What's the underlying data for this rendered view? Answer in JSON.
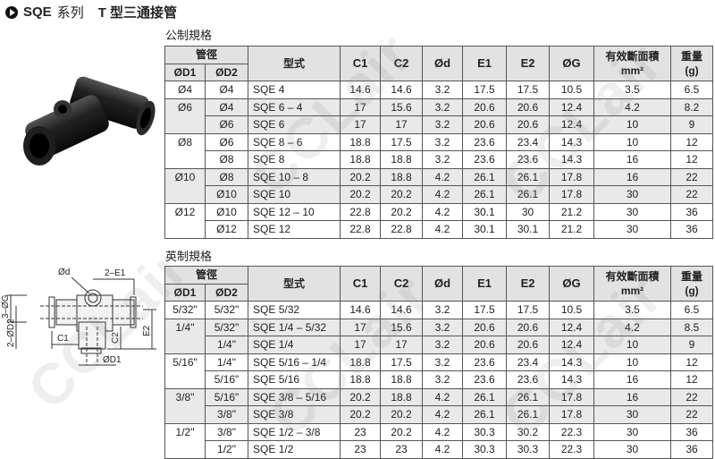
{
  "header": {
    "brand": "SQE",
    "series": "系列",
    "title": "T 型三通接管"
  },
  "watermark": "CCLair",
  "columns": {
    "tube": "管徑",
    "d1": "ØD1",
    "d2": "ØD2",
    "model": "型式",
    "c1": "C1",
    "c2": "C2",
    "d": "Ød",
    "e1": "E1",
    "e2": "E2",
    "g": "ØG",
    "area": "有效斷面積",
    "area_unit": "mm²",
    "weight": "重量",
    "weight_unit": "(g)"
  },
  "metric": {
    "label": "公制規格",
    "groups": [
      {
        "d1": "Ø4",
        "rows": [
          [
            "Ø4",
            "SQE   4",
            "14.6",
            "14.6",
            "3.2",
            "17.5",
            "17.5",
            "10.5",
            "3.5",
            "6.5"
          ]
        ]
      },
      {
        "d1": "Ø6",
        "rows": [
          [
            "Ø4",
            "SQE   6  –  4",
            "17",
            "15.6",
            "3.2",
            "20.6",
            "20.6",
            "12.4",
            "4.2",
            "8.2"
          ],
          [
            "Ø6",
            "SQE   6",
            "17",
            "17",
            "3.2",
            "20.6",
            "20.6",
            "12.4",
            "10",
            "9"
          ]
        ]
      },
      {
        "d1": "Ø8",
        "rows": [
          [
            "Ø6",
            "SQE   8  –  6",
            "18.8",
            "17.5",
            "3.2",
            "23.6",
            "23.4",
            "14.3",
            "10",
            "12"
          ],
          [
            "Ø8",
            "SQE   8",
            "18.8",
            "18.8",
            "3.2",
            "23.6",
            "23.6",
            "14.3",
            "16",
            "12"
          ]
        ]
      },
      {
        "d1": "Ø10",
        "rows": [
          [
            "Ø8",
            "SQE   10  –  8",
            "20.2",
            "18.8",
            "4.2",
            "26.1",
            "26.1",
            "17.8",
            "16",
            "22"
          ],
          [
            "Ø10",
            "SQE   10",
            "20.2",
            "20.2",
            "4.2",
            "26.1",
            "26.1",
            "17.8",
            "30",
            "22"
          ]
        ]
      },
      {
        "d1": "Ø12",
        "rows": [
          [
            "Ø10",
            "SQE   12  –  10",
            "22.8",
            "20.2",
            "4.2",
            "30.1",
            "30",
            "21.2",
            "30",
            "36"
          ],
          [
            "Ø12",
            "SQE   12",
            "22.8",
            "22.8",
            "4.2",
            "30.1",
            "30.1",
            "21.2",
            "30",
            "36"
          ]
        ]
      }
    ]
  },
  "imperial": {
    "label": "英制規格",
    "groups": [
      {
        "d1": "5/32\"",
        "rows": [
          [
            "5/32\"",
            "SQE  5/32",
            "14.6",
            "14.6",
            "3.2",
            "17.5",
            "17.5",
            "10.5",
            "3.5",
            "6.5"
          ]
        ]
      },
      {
        "d1": "1/4\"",
        "rows": [
          [
            "5/32\"",
            "SQE   1/4  – 5/32",
            "17",
            "15.6",
            "3.2",
            "20.6",
            "20.6",
            "12.4",
            "4.2",
            "8.5"
          ],
          [
            "1/4\"",
            "SQE   1/4",
            "17",
            "17",
            "3.2",
            "20.6",
            "20.6",
            "12.4",
            "10",
            "9"
          ]
        ]
      },
      {
        "d1": "5/16\"",
        "rows": [
          [
            "1/4\"",
            "SQE  5/16 –  1/4",
            "18.8",
            "17.5",
            "3.2",
            "23.6",
            "23.4",
            "14.3",
            "10",
            "12"
          ],
          [
            "5/16\"",
            "SQE  5/16",
            "18.8",
            "18.8",
            "3.2",
            "23.6",
            "23.6",
            "14.3",
            "16",
            "12"
          ]
        ]
      },
      {
        "d1": "3/8\"",
        "rows": [
          [
            "5/16\"",
            "SQE   3/8  – 5/16",
            "20.2",
            "18.8",
            "4.2",
            "26.1",
            "26.1",
            "17.8",
            "16",
            "22"
          ],
          [
            "3/8\"",
            "SQE   3/8",
            "20.2",
            "20.2",
            "4.2",
            "26.1",
            "26.1",
            "17.8",
            "30",
            "22"
          ]
        ]
      },
      {
        "d1": "1/2\"",
        "rows": [
          [
            "3/8\"",
            "SQE   1/2  –  3/8",
            "23",
            "20.2",
            "4.2",
            "30.3",
            "30.2",
            "22.3",
            "30",
            "36"
          ],
          [
            "1/2\"",
            "SQE   1/2",
            "23",
            "23",
            "4.2",
            "30.3",
            "30.3",
            "22.3",
            "30",
            "36"
          ]
        ]
      }
    ]
  },
  "diagram": {
    "d": "Ød",
    "e1": "2–E1",
    "g": "3–ØG",
    "d2": "2–ØD2",
    "c1": "C1",
    "c2": "C2",
    "e2": "E2",
    "d1": "ØD1"
  },
  "colors": {
    "shade": "#e9e9e9",
    "header": "#e2e2e2",
    "fitting": "#1a1a1a"
  }
}
